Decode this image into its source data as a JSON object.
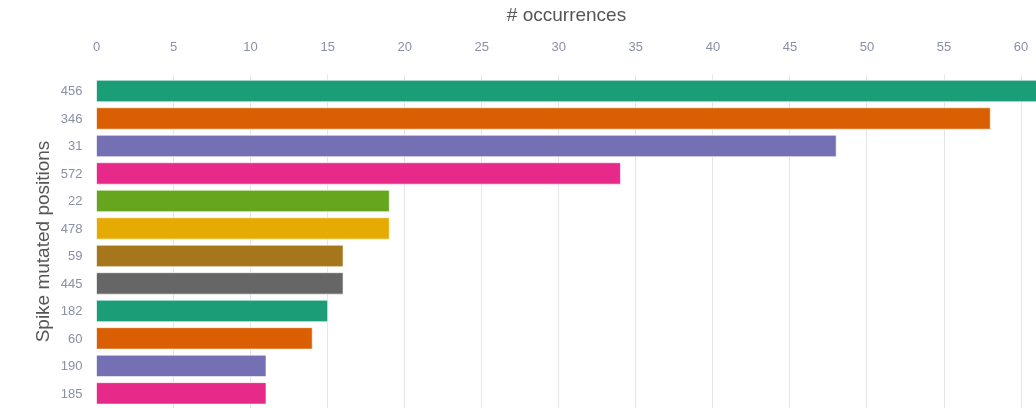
{
  "chart_data": {
    "type": "bar",
    "orientation": "horizontal",
    "xlabel": "# occurrences",
    "ylabel": "Spike mutated positions",
    "categories": [
      "456",
      "346",
      "31",
      "572",
      "22",
      "478",
      "59",
      "445",
      "182",
      "60",
      "190",
      "185"
    ],
    "values": [
      61,
      58,
      48,
      34,
      19,
      19,
      16,
      16,
      15,
      14,
      11,
      11
    ],
    "colors": [
      "#1b9e77",
      "#d95f02",
      "#7570b3",
      "#e7298a",
      "#66a61e",
      "#e6ab02",
      "#a6761d",
      "#666666",
      "#1b9e77",
      "#d95f02",
      "#7570b3",
      "#e7298a"
    ],
    "xlim": [
      0,
      61
    ],
    "xticks": [
      0,
      5,
      10,
      15,
      20,
      25,
      30,
      35,
      40,
      45,
      50,
      55,
      60
    ],
    "grid": "x"
  }
}
